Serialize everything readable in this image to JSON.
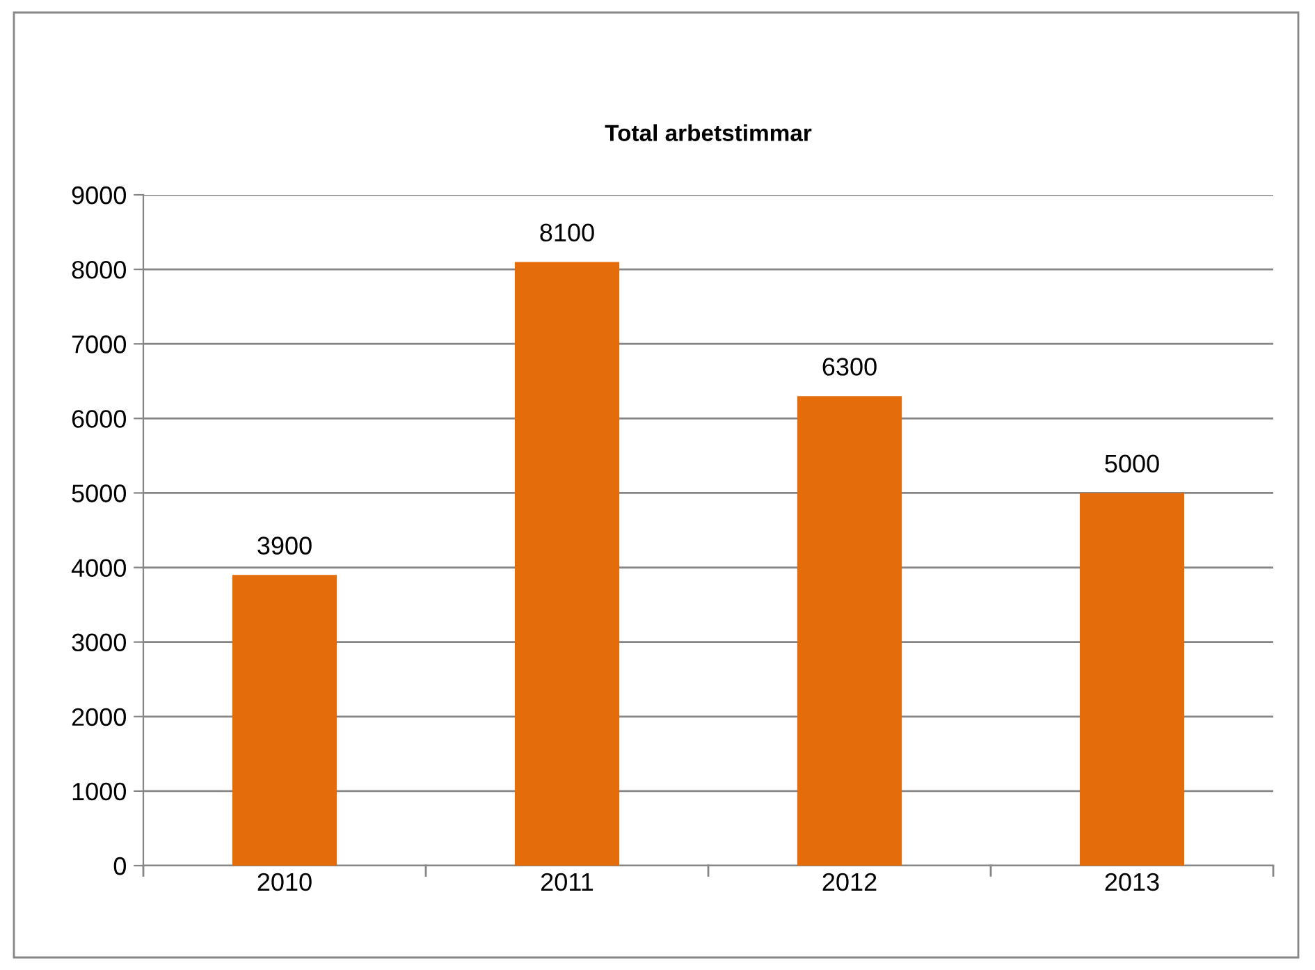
{
  "chart_data": {
    "type": "bar",
    "title": "Total arbetstimmar",
    "categories": [
      "2010",
      "2011",
      "2012",
      "2013"
    ],
    "values": [
      3900,
      8100,
      6300,
      5000
    ],
    "color": "#e46c0a",
    "ylim": [
      0,
      9000
    ],
    "yticks": [
      0,
      1000,
      2000,
      3000,
      4000,
      5000,
      6000,
      7000,
      8000,
      9000
    ],
    "grid": "y",
    "data_labels": true
  }
}
